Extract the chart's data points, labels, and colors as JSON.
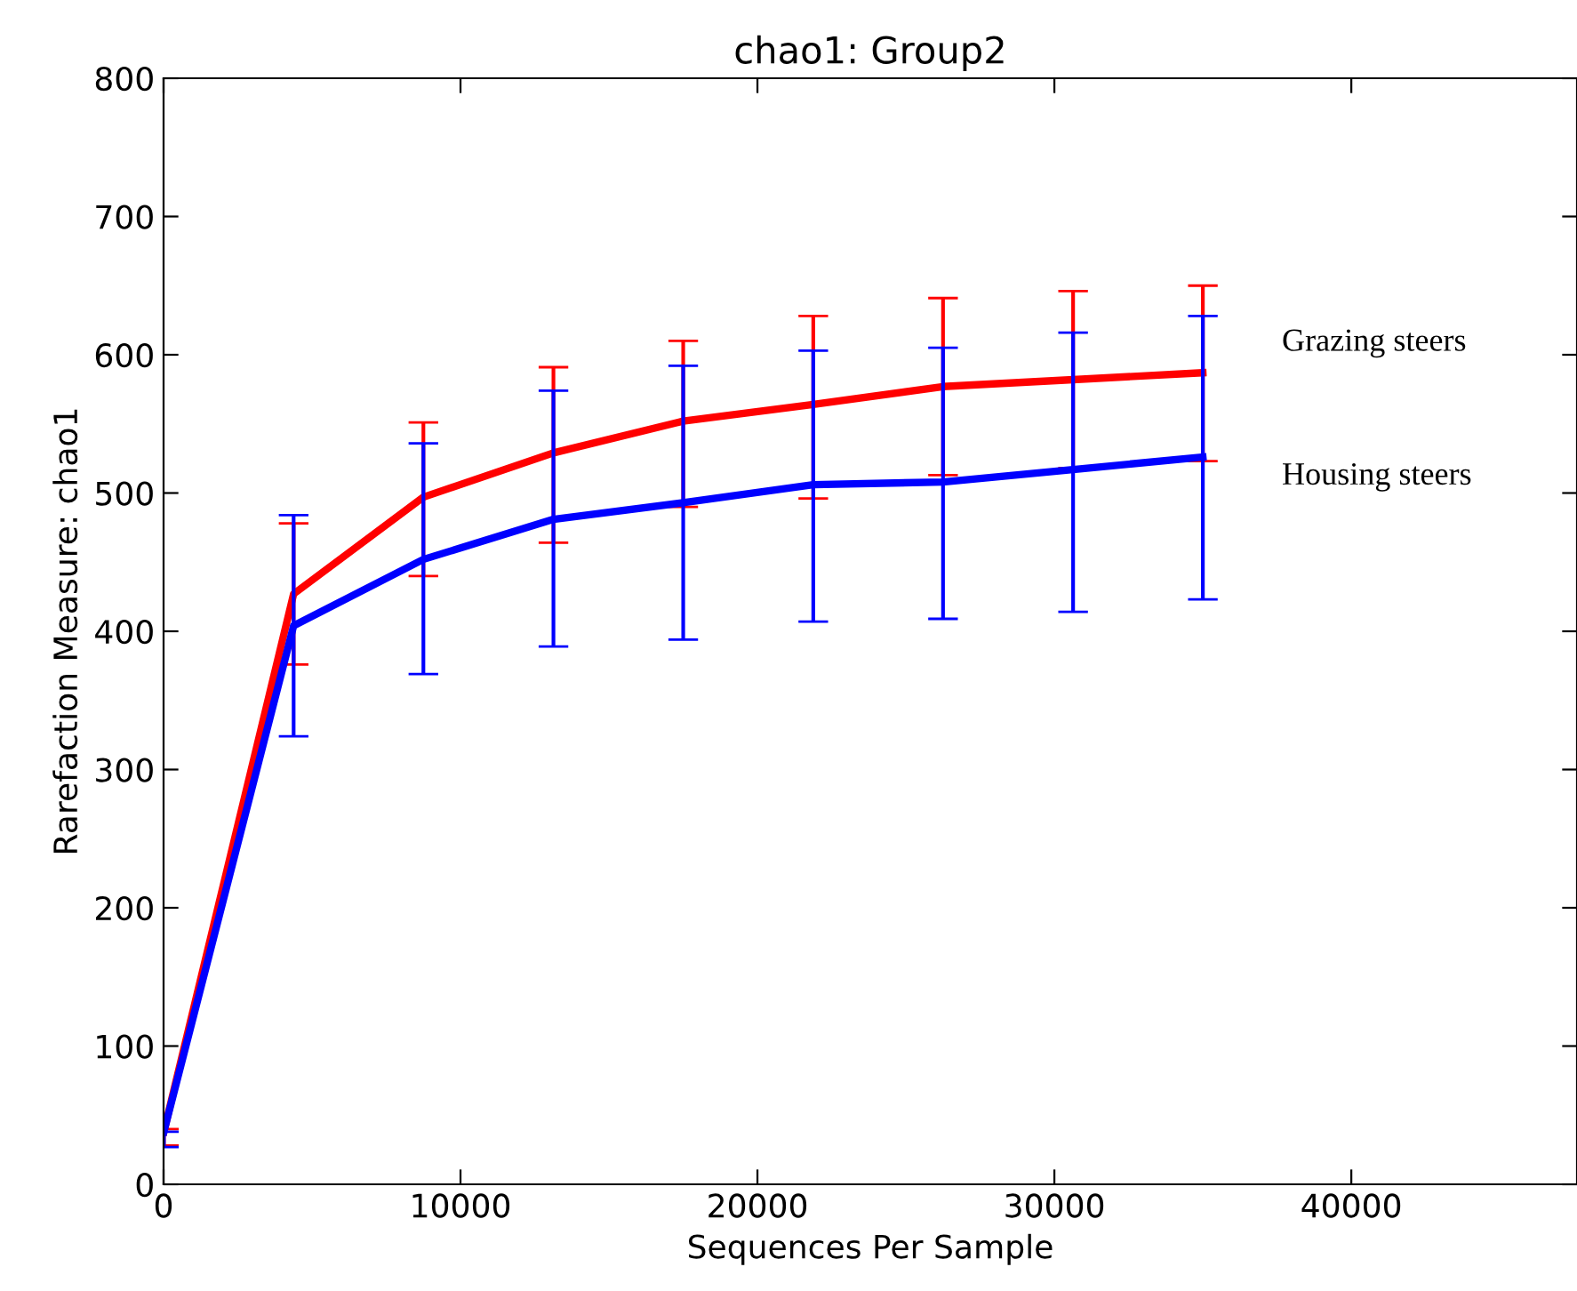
{
  "chart_data": {
    "type": "line",
    "title": "chao1: Group2",
    "xlabel": "Sequences Per Sample",
    "ylabel": "Rarefaction Measure: chao1",
    "x": [
      10,
      4380,
      8750,
      13130,
      17500,
      21880,
      26250,
      30630,
      35000
    ],
    "series": [
      {
        "name": "Grazing steers",
        "color": "#ff0000",
        "values": [
          38,
          427,
          497,
          529,
          552,
          564,
          577,
          582,
          587
        ],
        "errors": [
          [
            28,
            40
          ],
          [
            376,
            478
          ],
          [
            440,
            551
          ],
          [
            464,
            591
          ],
          [
            490,
            610
          ],
          [
            496,
            628
          ],
          [
            513,
            641
          ],
          [
            518,
            646
          ],
          [
            523,
            650
          ]
        ]
      },
      {
        "name": "Housing steers",
        "color": "#0000ff",
        "values": [
          38,
          404,
          452,
          481,
          493,
          506,
          508,
          517,
          526
        ],
        "errors": [
          [
            27,
            38
          ],
          [
            324,
            484
          ],
          [
            369,
            536
          ],
          [
            389,
            574
          ],
          [
            394,
            592
          ],
          [
            407,
            603
          ],
          [
            409,
            605
          ],
          [
            414,
            616
          ],
          [
            423,
            628
          ]
        ]
      }
    ],
    "xlim": [
      0,
      47600
    ],
    "ylim": [
      0,
      800
    ],
    "xticks": [
      0,
      10000,
      20000,
      30000,
      40000
    ],
    "yticks": [
      0,
      100,
      200,
      300,
      400,
      500,
      600,
      700,
      800
    ],
    "grid": false,
    "legend": false,
    "marker": "none",
    "line_style": "solid"
  }
}
